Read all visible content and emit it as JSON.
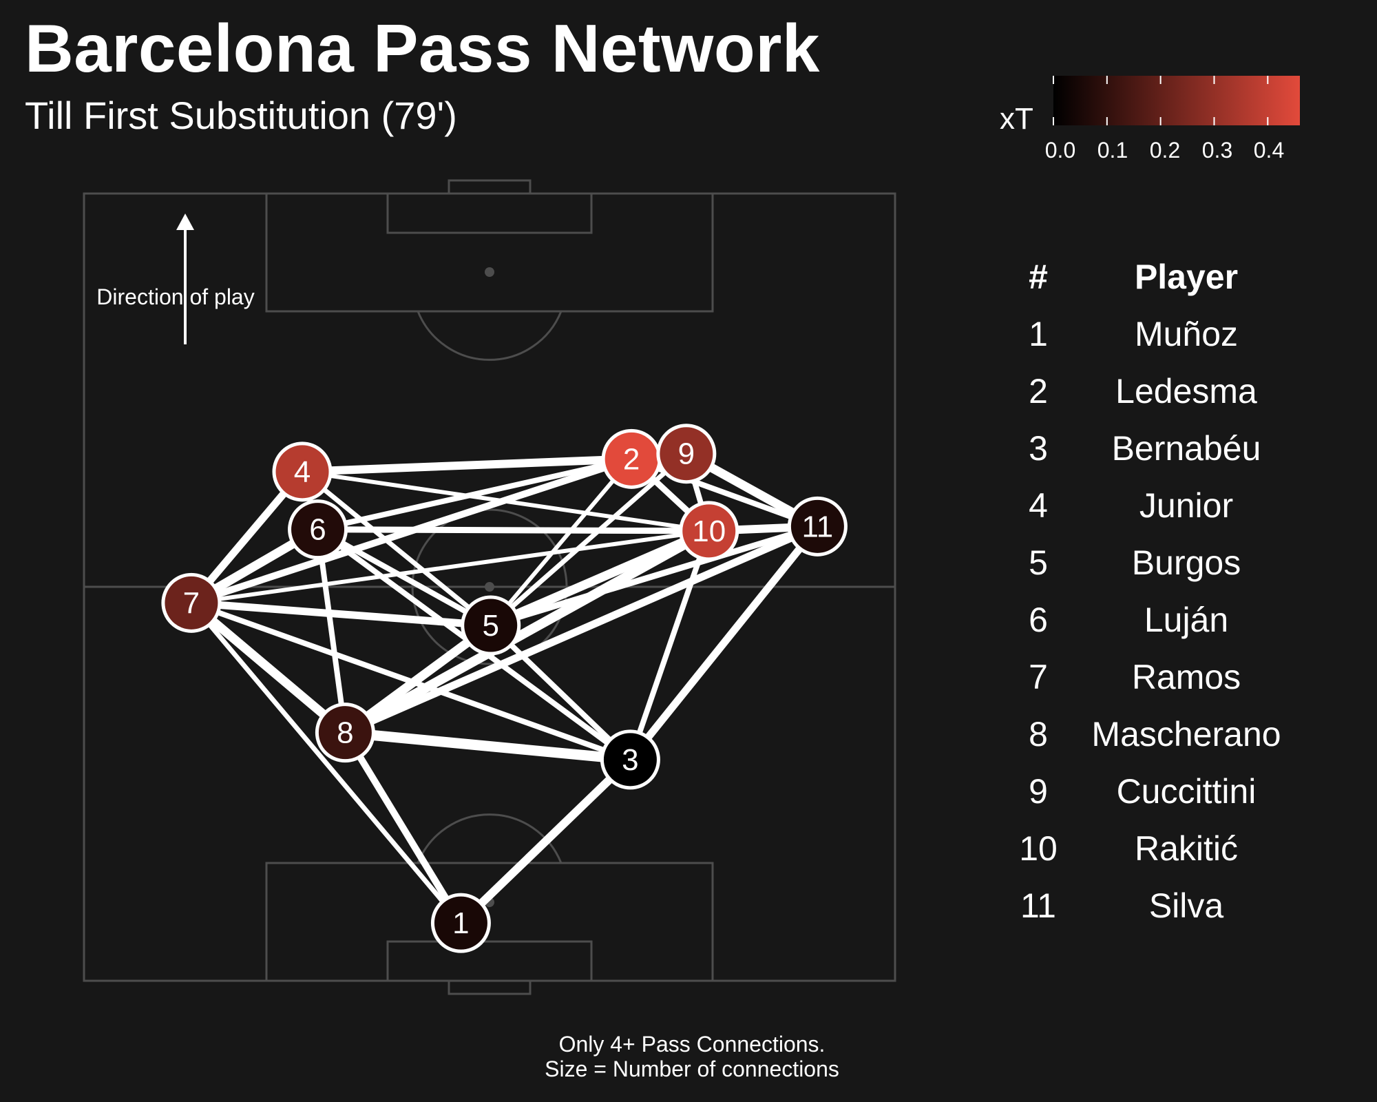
{
  "header": {
    "title": "Barcelona Pass Network",
    "subtitle": "Till First Substitution (79')"
  },
  "annotation": {
    "direction": "Direction of play"
  },
  "legend": {
    "label": "xT",
    "ticks": [
      "0.0",
      "0.1",
      "0.2",
      "0.3",
      "0.4"
    ],
    "color_low": "#000000",
    "color_high": "#e24a3b"
  },
  "roster": {
    "num_header": "#",
    "name_header": "Player",
    "players": [
      {
        "num": "1",
        "name": "Muñoz"
      },
      {
        "num": "2",
        "name": "Ledesma"
      },
      {
        "num": "3",
        "name": "Bernabéu"
      },
      {
        "num": "4",
        "name": "Junior"
      },
      {
        "num": "5",
        "name": "Burgos"
      },
      {
        "num": "6",
        "name": "Luján"
      },
      {
        "num": "7",
        "name": "Ramos"
      },
      {
        "num": "8",
        "name": "Mascherano"
      },
      {
        "num": "9",
        "name": "Cuccittini"
      },
      {
        "num": "10",
        "name": "Rakitić"
      },
      {
        "num": "11",
        "name": "Silva"
      }
    ]
  },
  "footnote": {
    "line1": "Only 4+ Pass Connections.",
    "line2": "Size = Number of connections"
  },
  "chart_data": {
    "type": "network",
    "pitch": {
      "length": 105,
      "width": 68,
      "orientation": "vertical",
      "direction_of_play": "up"
    },
    "color_scale": {
      "variable": "xT",
      "domain": [
        0,
        0.46
      ]
    },
    "nodes": [
      {
        "id": "1",
        "x": 31.6,
        "y": 7.7,
        "xT": 0.05
      },
      {
        "id": "2",
        "x": 45.9,
        "y": 69.6,
        "xT": 0.46
      },
      {
        "id": "3",
        "x": 45.8,
        "y": 29.5,
        "xT": 0.0
      },
      {
        "id": "4",
        "x": 18.3,
        "y": 67.9,
        "xT": 0.37
      },
      {
        "id": "5",
        "x": 34.1,
        "y": 47.4,
        "xT": 0.05
      },
      {
        "id": "6",
        "x": 19.6,
        "y": 60.2,
        "xT": 0.07
      },
      {
        "id": "7",
        "x": 9.0,
        "y": 50.4,
        "xT": 0.22
      },
      {
        "id": "8",
        "x": 21.9,
        "y": 33.1,
        "xT": 0.12
      },
      {
        "id": "9",
        "x": 50.5,
        "y": 70.3,
        "xT": 0.3
      },
      {
        "id": "10",
        "x": 52.4,
        "y": 60.0,
        "xT": 0.4
      },
      {
        "id": "11",
        "x": 61.5,
        "y": 60.6,
        "xT": 0.06
      }
    ],
    "edges": [
      {
        "source": "1",
        "target": "3",
        "passes": 10
      },
      {
        "source": "1",
        "target": "8",
        "passes": 8
      },
      {
        "source": "1",
        "target": "7",
        "passes": 5
      },
      {
        "source": "7",
        "target": "8",
        "passes": 11
      },
      {
        "source": "7",
        "target": "4",
        "passes": 9
      },
      {
        "source": "7",
        "target": "6",
        "passes": 11
      },
      {
        "source": "7",
        "target": "5",
        "passes": 9
      },
      {
        "source": "7",
        "target": "3",
        "passes": 6
      },
      {
        "source": "7",
        "target": "2",
        "passes": 8
      },
      {
        "source": "7",
        "target": "10",
        "passes": 4
      },
      {
        "source": "8",
        "target": "3",
        "passes": 13
      },
      {
        "source": "8",
        "target": "5",
        "passes": 11
      },
      {
        "source": "8",
        "target": "10",
        "passes": 12
      },
      {
        "source": "8",
        "target": "11",
        "passes": 9
      },
      {
        "source": "8",
        "target": "6",
        "passes": 6
      },
      {
        "source": "4",
        "target": "2",
        "passes": 10
      },
      {
        "source": "4",
        "target": "5",
        "passes": 5
      },
      {
        "source": "4",
        "target": "10",
        "passes": 4
      },
      {
        "source": "4",
        "target": "6",
        "passes": 6
      },
      {
        "source": "6",
        "target": "10",
        "passes": 7
      },
      {
        "source": "6",
        "target": "5",
        "passes": 6
      },
      {
        "source": "6",
        "target": "3",
        "passes": 6
      },
      {
        "source": "6",
        "target": "2",
        "passes": 6
      },
      {
        "source": "5",
        "target": "10",
        "passes": 11
      },
      {
        "source": "5",
        "target": "3",
        "passes": 6
      },
      {
        "source": "5",
        "target": "2",
        "passes": 4
      },
      {
        "source": "5",
        "target": "9",
        "passes": 5
      },
      {
        "source": "5",
        "target": "11",
        "passes": 7
      },
      {
        "source": "3",
        "target": "11",
        "passes": 9
      },
      {
        "source": "3",
        "target": "10",
        "passes": 6
      },
      {
        "source": "2",
        "target": "9",
        "passes": 7
      },
      {
        "source": "2",
        "target": "10",
        "passes": 7
      },
      {
        "source": "2",
        "target": "11",
        "passes": 6
      },
      {
        "source": "9",
        "target": "11",
        "passes": 11
      },
      {
        "source": "9",
        "target": "10",
        "passes": 6
      },
      {
        "source": "10",
        "target": "11",
        "passes": 10
      }
    ]
  }
}
